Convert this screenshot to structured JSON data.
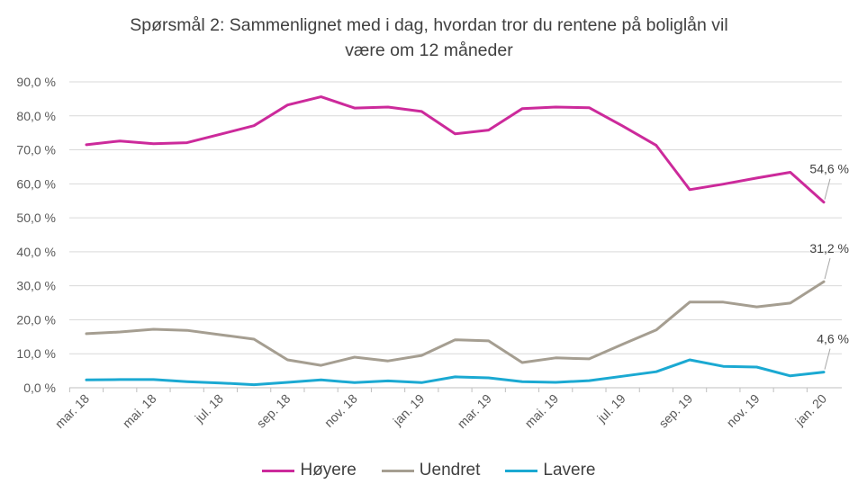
{
  "title_line1": "Spørsmål 2: Sammenlignet  med i dag, hvordan tror du rentene på boliglån vil",
  "title_line2": "være om 12 måneder",
  "chart_data": {
    "type": "line",
    "title": "Spørsmål 2: Sammenlignet  med i dag, hvordan tror du rentene på boliglån vil være om 12 måneder",
    "xlabel": "",
    "ylabel": "",
    "ylim": [
      0,
      90
    ],
    "y_ticks": [
      0,
      10,
      20,
      30,
      40,
      50,
      60,
      70,
      80,
      90
    ],
    "y_tick_labels": [
      "0,0 %",
      "10,0 %",
      "20,0 %",
      "30,0 %",
      "40,0 %",
      "50,0 %",
      "60,0 %",
      "70,0 %",
      "80,0 %",
      "90,0 %"
    ],
    "x": [
      "mar. 18",
      "apr. 18",
      "mai. 18",
      "jun. 18",
      "jul. 18",
      "aug. 18",
      "sep. 18",
      "okt. 18",
      "nov. 18",
      "des. 18",
      "jan. 19",
      "feb. 19",
      "mar. 19",
      "apr. 19",
      "mai. 19",
      "jun. 19",
      "jul. 19",
      "aug. 19",
      "sep. 19",
      "okt. 19",
      "nov. 19",
      "des. 19",
      "jan. 20"
    ],
    "x_tick_labels": [
      "mar. 18",
      "mai. 18",
      "jul. 18",
      "sep. 18",
      "nov. 18",
      "jan. 19",
      "mar. 19",
      "mai. 19",
      "jul. 19",
      "sep. 19",
      "nov. 19",
      "jan. 20"
    ],
    "series": [
      {
        "name": "Høyere",
        "color": "#CC2A9B",
        "values": [
          71.5,
          72.6,
          71.8,
          72.1,
          74.6,
          77.1,
          83.2,
          85.6,
          82.3,
          82.6,
          81.3,
          74.7,
          75.8,
          82.1,
          82.6,
          82.4,
          77.0,
          71.3,
          58.3,
          59.9,
          61.7,
          63.4,
          54.6
        ]
      },
      {
        "name": "Uendret",
        "color": "#A59E91",
        "values": [
          15.9,
          16.4,
          17.2,
          16.9,
          15.6,
          14.3,
          8.2,
          6.6,
          9.0,
          7.9,
          9.5,
          14.1,
          13.8,
          7.4,
          8.8,
          8.5,
          12.8,
          17.0,
          25.2,
          25.2,
          23.8,
          24.9,
          31.2
        ]
      },
      {
        "name": "Lavere",
        "color": "#1BA9D2",
        "values": [
          2.3,
          2.4,
          2.4,
          1.8,
          1.4,
          0.9,
          1.6,
          2.3,
          1.5,
          2.0,
          1.5,
          3.2,
          2.9,
          1.8,
          1.6,
          2.1,
          3.4,
          4.7,
          8.2,
          6.3,
          6.1,
          3.5,
          4.6
        ]
      }
    ],
    "data_labels": [
      {
        "series": "Høyere",
        "text": "54,6 %"
      },
      {
        "series": "Uendret",
        "text": "31,2 %"
      },
      {
        "series": "Lavere",
        "text": "4,6 %"
      }
    ],
    "grid": true,
    "legend": "bottom"
  }
}
